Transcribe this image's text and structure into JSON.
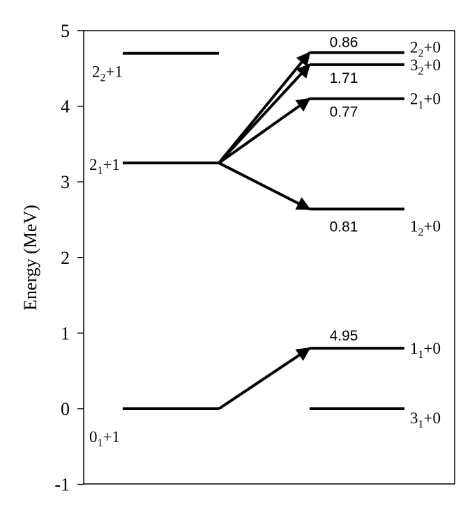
{
  "axis": {
    "ylabel": "Energy (MeV)",
    "ylim": [
      -1,
      5
    ],
    "ticks": [
      {
        "value": 5,
        "label": "5"
      },
      {
        "value": 4,
        "label": "4"
      },
      {
        "value": 3,
        "label": "3"
      },
      {
        "value": 2,
        "label": "2"
      },
      {
        "value": 1,
        "label": "1"
      },
      {
        "value": 0,
        "label": "0"
      },
      {
        "value": -1,
        "label": "-1"
      }
    ]
  },
  "levels_left": [
    {
      "id": "L22",
      "energy": 4.7,
      "label": {
        "j": "2",
        "n": "2",
        "rest": "+1"
      }
    },
    {
      "id": "L21",
      "energy": 3.25,
      "label": {
        "j": "2",
        "n": "1",
        "rest": "+1"
      }
    },
    {
      "id": "L01",
      "energy": 0.0,
      "label": {
        "j": "0",
        "n": "1",
        "rest": "+1"
      }
    }
  ],
  "levels_right": [
    {
      "id": "R22",
      "energy": 4.71,
      "label": {
        "j": "2",
        "n": "2",
        "rest": "+0"
      }
    },
    {
      "id": "R32",
      "energy": 4.55,
      "label": {
        "j": "3",
        "n": "2",
        "rest": "+0"
      }
    },
    {
      "id": "R21",
      "energy": 4.1,
      "label": {
        "j": "2",
        "n": "1",
        "rest": "+0"
      }
    },
    {
      "id": "R12",
      "energy": 2.64,
      "label": {
        "j": "1",
        "n": "2",
        "rest": "+0"
      }
    },
    {
      "id": "R11",
      "energy": 0.8,
      "label": {
        "j": "1",
        "n": "1",
        "rest": "+0"
      }
    },
    {
      "id": "R31",
      "energy": 0.0,
      "label": {
        "j": "3",
        "n": "1",
        "rest": "+0"
      }
    }
  ],
  "transitions": [
    {
      "from": "L21",
      "to": "R22",
      "value": "0.86"
    },
    {
      "from": "L21",
      "to": "R32",
      "value": "1.71"
    },
    {
      "from": "L21",
      "to": "R21",
      "value": "0.77"
    },
    {
      "from": "L21",
      "to": "R12",
      "value": "0.81"
    },
    {
      "from": "L01",
      "to": "R11",
      "value": "4.95"
    }
  ]
}
